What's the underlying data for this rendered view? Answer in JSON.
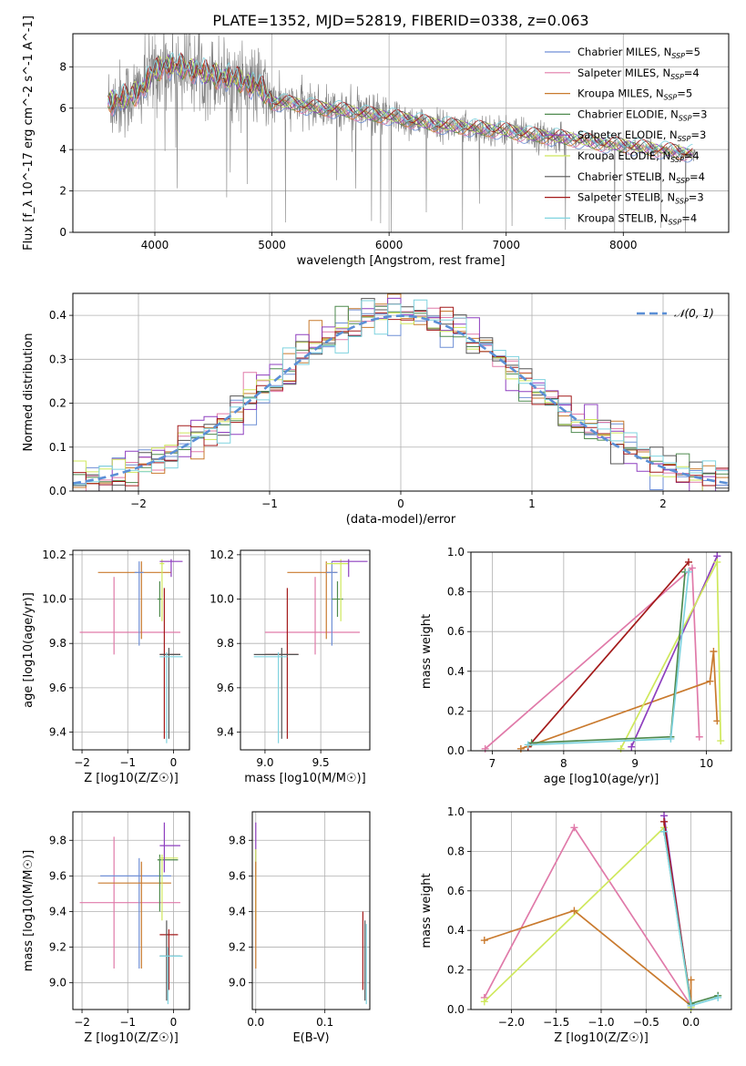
{
  "figure_title": "PLATE=1352, MJD=52819, FIBERID=0338, z=0.063",
  "colors": {
    "MILES": "#6f8fd6",
    "Salpeter MILES": "#e07aa9",
    "Kroupa MILES": "#c97a2e",
    "Chabrier ELODIE": "#4f8a4f",
    "Salpeter ELODIE": "#8e3fbf",
    "Kroupa ELODIE": "#cfe85c",
    "Chabrier STELIB": "#555555",
    "Salpeter STELIB": "#a31a1a",
    "Kroupa STELIB": "#7fd3df",
    "spectrum": "#808080",
    "grid": "#b0b0b0"
  },
  "chart_data": [
    {
      "type": "line",
      "id": "spectrum",
      "xlabel": "wavelength [Angstrom, rest frame]",
      "ylabel": "Flux [f_λ 10^-17 erg cm^-2 s^-1 A^-1]",
      "xlim": [
        3300,
        8900
      ],
      "ylim": [
        0,
        9.6
      ],
      "xticks": [
        4000,
        5000,
        6000,
        7000,
        8000
      ],
      "yticks": [
        0,
        2,
        4,
        6,
        8
      ],
      "legend_placement": "top-right",
      "legend": [
        {
          "label": "Chabrier MILES, N_SSP=5",
          "color": "#6f8fd6"
        },
        {
          "label": "Salpeter MILES, N_SSP=4",
          "color": "#e07aa9"
        },
        {
          "label": "Kroupa MILES, N_SSP=5",
          "color": "#c97a2e"
        },
        {
          "label": "Chabrier ELODIE, N_SSP=3",
          "color": "#4f8a4f"
        },
        {
          "label": "Salpeter ELODIE, N_SSP=3",
          "color": "#8e3fbf"
        },
        {
          "label": "Kroupa ELODIE, N_SSP=4",
          "color": "#cfe85c"
        },
        {
          "label": "Chabrier STELIB, N_SSP=4",
          "color": "#555555"
        },
        {
          "label": "Salpeter STELIB, N_SSP=3",
          "color": "#a31a1a"
        },
        {
          "label": "Kroupa STELIB, N_SSP=4",
          "color": "#7fd3df"
        }
      ],
      "continuum": [
        [
          3600,
          6.3
        ],
        [
          3700,
          6.4
        ],
        [
          3800,
          6.6
        ],
        [
          3900,
          7.0
        ],
        [
          4000,
          7.8
        ],
        [
          4100,
          8.1
        ],
        [
          4300,
          7.9
        ],
        [
          4500,
          7.6
        ],
        [
          4700,
          7.4
        ],
        [
          4900,
          7.0
        ],
        [
          5000,
          6.3
        ],
        [
          5200,
          6.2
        ],
        [
          5400,
          6.0
        ],
        [
          5600,
          5.9
        ],
        [
          5800,
          5.7
        ],
        [
          6000,
          5.6
        ],
        [
          6200,
          5.4
        ],
        [
          6400,
          5.2
        ],
        [
          6600,
          5.1
        ],
        [
          6800,
          5.0
        ],
        [
          7000,
          4.9
        ],
        [
          7200,
          4.7
        ],
        [
          7400,
          4.6
        ],
        [
          7600,
          4.5
        ],
        [
          7800,
          4.3
        ],
        [
          8000,
          4.2
        ],
        [
          8300,
          4.0
        ],
        [
          8600,
          3.8
        ]
      ]
    },
    {
      "type": "step",
      "id": "residual-histogram",
      "xlabel": "(data-model)/error",
      "ylabel": "Normed distribution",
      "xlim": [
        -2.5,
        2.5
      ],
      "ylim": [
        0,
        0.45
      ],
      "xticks": [
        -2,
        -1,
        0,
        1,
        2
      ],
      "yticks": [
        0.0,
        0.1,
        0.2,
        0.3,
        0.4
      ],
      "legend_placement": "top-right",
      "gauss_label": "𝒩(0, 1)",
      "gauss_color": "#5b8fd6"
    },
    {
      "type": "errorbar",
      "id": "age-vs-Z",
      "xlabel": "Z [log10(Z/Z☉)]",
      "ylabel": "age [log10(age/yr)]",
      "xlim": [
        -2.2,
        0.35
      ],
      "ylim": [
        9.32,
        10.22
      ],
      "xticks": [
        -2,
        -1,
        0
      ],
      "yticks": [
        9.4,
        9.6,
        9.8,
        10.0,
        10.2
      ],
      "points": [
        {
          "c": "#e07aa9",
          "x": -1.3,
          "y": 9.85,
          "xl": -2.05,
          "xh": 0.15,
          "yl": 9.75,
          "yh": 10.1
        },
        {
          "c": "#c97a2e",
          "x": -0.7,
          "y": 10.12,
          "xl": -1.65,
          "xh": -0.05,
          "yl": 9.82,
          "yh": 10.17
        },
        {
          "c": "#6f8fd6",
          "x": -0.75,
          "y": 10.12,
          "xl": -0.85,
          "xh": -0.65,
          "yl": 9.79,
          "yh": 10.17
        },
        {
          "c": "#4f8a4f",
          "x": -0.3,
          "y": 10.0,
          "xl": -0.35,
          "xh": -0.25,
          "yl": 9.92,
          "yh": 10.08
        },
        {
          "c": "#cfe85c",
          "x": -0.25,
          "y": 10.16,
          "xl": -0.3,
          "xh": -0.2,
          "yl": 9.9,
          "yh": 10.18
        },
        {
          "c": "#8e3fbf",
          "x": -0.05,
          "y": 10.17,
          "xl": -0.3,
          "xh": 0.2,
          "yl": 10.1,
          "yh": 10.18
        },
        {
          "c": "#a31a1a",
          "x": -0.2,
          "y": 9.75,
          "xl": -0.3,
          "xh": 0.15,
          "yl": 9.37,
          "yh": 10.05
        },
        {
          "c": "#555555",
          "x": -0.1,
          "y": 9.75,
          "xl": -0.3,
          "xh": 0.15,
          "yl": 9.37,
          "yh": 9.78
        },
        {
          "c": "#7fd3df",
          "x": -0.15,
          "y": 9.74,
          "xl": -0.3,
          "xh": 0.2,
          "yl": 9.35,
          "yh": 9.76
        }
      ]
    },
    {
      "type": "errorbar",
      "id": "age-vs-mass",
      "xlabel": "mass [log10(M/M☉)]",
      "ylabel": "",
      "xlim": [
        8.78,
        9.94
      ],
      "ylim": [
        9.32,
        10.22
      ],
      "xticks": [
        9.0,
        9.5
      ],
      "yticks": [
        9.4,
        9.6,
        9.8,
        10.0,
        10.2
      ],
      "points": [
        {
          "c": "#e07aa9",
          "x": 9.45,
          "y": 9.85,
          "xl": 9.0,
          "xh": 9.85,
          "yl": 9.75,
          "yh": 10.1
        },
        {
          "c": "#c97a2e",
          "x": 9.55,
          "y": 10.12,
          "xl": 9.2,
          "xh": 9.65,
          "yl": 9.82,
          "yh": 10.17
        },
        {
          "c": "#6f8fd6",
          "x": 9.6,
          "y": 10.12,
          "xl": 9.55,
          "xh": 9.65,
          "yl": 9.79,
          "yh": 10.17
        },
        {
          "c": "#4f8a4f",
          "x": 9.65,
          "y": 10.0,
          "xl": 9.6,
          "xh": 9.7,
          "yl": 9.92,
          "yh": 10.08
        },
        {
          "c": "#cfe85c",
          "x": 9.68,
          "y": 10.16,
          "xl": 9.55,
          "xh": 9.75,
          "yl": 9.9,
          "yh": 10.18
        },
        {
          "c": "#8e3fbf",
          "x": 9.75,
          "y": 10.17,
          "xl": 9.6,
          "xh": 9.92,
          "yl": 10.1,
          "yh": 10.18
        },
        {
          "c": "#a31a1a",
          "x": 9.2,
          "y": 9.75,
          "xl": 9.0,
          "xh": 9.3,
          "yl": 9.37,
          "yh": 10.05
        },
        {
          "c": "#555555",
          "x": 9.15,
          "y": 9.75,
          "xl": 8.9,
          "xh": 9.3,
          "yl": 9.37,
          "yh": 9.78
        },
        {
          "c": "#7fd3df",
          "x": 9.12,
          "y": 9.74,
          "xl": 8.9,
          "xh": 9.2,
          "yl": 9.35,
          "yh": 9.76
        }
      ]
    },
    {
      "type": "line",
      "id": "mass-weight-vs-age",
      "xlabel": "age [log10(age/yr)]",
      "ylabel": "mass weight",
      "xlim": [
        6.7,
        10.35
      ],
      "ylim": [
        0,
        1
      ],
      "xticks": [
        7,
        8,
        9,
        10
      ],
      "yticks": [
        0.0,
        0.2,
        0.4,
        0.6,
        0.8,
        1.0
      ],
      "series": [
        {
          "c": "#e07aa9",
          "pts": [
            [
              6.9,
              0.01
            ],
            [
              9.8,
              0.92
            ],
            [
              9.9,
              0.07
            ]
          ]
        },
        {
          "c": "#a31a1a",
          "pts": [
            [
              7.5,
              0.02
            ],
            [
              9.75,
              0.95
            ]
          ]
        },
        {
          "c": "#c97a2e",
          "pts": [
            [
              7.4,
              0.01
            ],
            [
              10.05,
              0.35
            ],
            [
              10.1,
              0.5
            ],
            [
              10.15,
              0.15
            ]
          ]
        },
        {
          "c": "#8e3fbf",
          "pts": [
            [
              8.95,
              0.02
            ],
            [
              10.15,
              0.98
            ]
          ]
        },
        {
          "c": "#cfe85c",
          "pts": [
            [
              8.8,
              0.01
            ],
            [
              10.15,
              0.95
            ],
            [
              10.2,
              0.05
            ]
          ]
        },
        {
          "c": "#4f8a4f",
          "pts": [
            [
              7.55,
              0.04
            ],
            [
              9.5,
              0.07
            ],
            [
              9.7,
              0.9
            ]
          ]
        },
        {
          "c": "#7fd3df",
          "pts": [
            [
              7.5,
              0.03
            ],
            [
              9.5,
              0.06
            ],
            [
              9.75,
              0.9
            ]
          ]
        }
      ]
    },
    {
      "type": "errorbar",
      "id": "mass-vs-Z",
      "xlabel": "Z [log10(Z/Z☉)]",
      "ylabel": "mass [log10(M/M☉)]",
      "xlim": [
        -2.2,
        0.35
      ],
      "ylim": [
        8.85,
        9.96
      ],
      "xticks": [
        -2,
        -1,
        0
      ],
      "yticks": [
        9.0,
        9.2,
        9.4,
        9.6,
        9.8
      ],
      "points": [
        {
          "c": "#e07aa9",
          "x": -1.3,
          "y": 9.45,
          "xl": -2.05,
          "xh": 0.15,
          "yl": 9.08,
          "yh": 9.82
        },
        {
          "c": "#6f8fd6",
          "x": -0.75,
          "y": 9.6,
          "xl": -1.6,
          "xh": -0.05,
          "yl": 9.08,
          "yh": 9.7
        },
        {
          "c": "#c97a2e",
          "x": -0.7,
          "y": 9.56,
          "xl": -1.65,
          "xh": -0.05,
          "yl": 9.08,
          "yh": 9.68
        },
        {
          "c": "#4f8a4f",
          "x": -0.3,
          "y": 9.69,
          "xl": -0.35,
          "xh": 0.1,
          "yl": 9.4,
          "yh": 9.72
        },
        {
          "c": "#cfe85c",
          "x": -0.25,
          "y": 9.7,
          "xl": -0.3,
          "xh": 0.1,
          "yl": 9.35,
          "yh": 9.72
        },
        {
          "c": "#8e3fbf",
          "x": -0.2,
          "y": 9.77,
          "xl": -0.3,
          "xh": 0.15,
          "yl": 9.62,
          "yh": 9.9
        },
        {
          "c": "#a31a1a",
          "x": -0.1,
          "y": 9.27,
          "xl": -0.3,
          "xh": 0.1,
          "yl": 8.96,
          "yh": 9.3
        },
        {
          "c": "#555555",
          "x": -0.15,
          "y": 9.15,
          "xl": -0.3,
          "xh": 0.15,
          "yl": 8.9,
          "yh": 9.35
        },
        {
          "c": "#7fd3df",
          "x": -0.12,
          "y": 9.15,
          "xl": -0.3,
          "xh": 0.2,
          "yl": 8.88,
          "yh": 9.2
        }
      ]
    },
    {
      "type": "errorbar",
      "id": "mass-vs-ebv",
      "xlabel": "E(B-V)",
      "ylabel": "",
      "xlim": [
        -0.005,
        0.165
      ],
      "ylim": [
        8.85,
        9.96
      ],
      "xticks": [
        0.0,
        0.1
      ],
      "yticks": [
        9.0,
        9.2,
        9.4,
        9.6,
        9.8
      ],
      "points": [
        {
          "c": "#8e3fbf",
          "x": 0.0,
          "y": 9.75,
          "xl": 0.0,
          "xh": 0.0,
          "yl": 9.6,
          "yh": 9.9
        },
        {
          "c": "#cfe85c",
          "x": 0.0,
          "y": 9.7,
          "xl": 0.0,
          "xh": 0.0,
          "yl": 9.35,
          "yh": 9.75
        },
        {
          "c": "#c97a2e",
          "x": 0.0,
          "y": 9.3,
          "xl": 0.0,
          "xh": 0.0,
          "yl": 9.08,
          "yh": 9.68
        },
        {
          "c": "#a31a1a",
          "x": 0.155,
          "y": 9.2,
          "xl": 0.155,
          "xh": 0.155,
          "yl": 8.96,
          "yh": 9.4
        },
        {
          "c": "#555555",
          "x": 0.158,
          "y": 9.1,
          "xl": 0.158,
          "xh": 0.158,
          "yl": 8.9,
          "yh": 9.35
        },
        {
          "c": "#7fd3df",
          "x": 0.16,
          "y": 9.1,
          "xl": 0.16,
          "xh": 0.16,
          "yl": 8.88,
          "yh": 9.33
        }
      ]
    },
    {
      "type": "line",
      "id": "mass-weight-vs-Z",
      "xlabel": "Z [log10(Z/Z☉)]",
      "ylabel": "mass weight",
      "xlim": [
        -2.45,
        0.45
      ],
      "ylim": [
        0,
        1
      ],
      "xticks": [
        -2.0,
        -1.5,
        -1.0,
        -0.5,
        0.0
      ],
      "yticks": [
        0.0,
        0.2,
        0.4,
        0.6,
        0.8,
        1.0
      ],
      "xticklabels": [
        "−2.0",
        "−1.5",
        "−1.0",
        "−0.5",
        "0.0"
      ],
      "series": [
        {
          "c": "#e07aa9",
          "pts": [
            [
              -2.3,
              0.06
            ],
            [
              -1.3,
              0.92
            ],
            [
              0.0,
              0.02
            ]
          ]
        },
        {
          "c": "#cfe85c",
          "pts": [
            [
              -2.3,
              0.04
            ],
            [
              -0.3,
              0.92
            ],
            [
              0.0,
              0.01
            ]
          ]
        },
        {
          "c": "#c97a2e",
          "pts": [
            [
              -2.3,
              0.35
            ],
            [
              -1.3,
              0.5
            ],
            [
              0.0,
              0.02
            ],
            [
              0.0,
              0.15
            ]
          ]
        },
        {
          "c": "#8e3fbf",
          "pts": [
            [
              -0.3,
              0.98
            ],
            [
              0.0,
              0.02
            ]
          ]
        },
        {
          "c": "#a31a1a",
          "pts": [
            [
              -0.3,
              0.95
            ],
            [
              0.0,
              0.03
            ]
          ]
        },
        {
          "c": "#4f8a4f",
          "pts": [
            [
              -0.3,
              0.9
            ],
            [
              0.0,
              0.03
            ],
            [
              0.3,
              0.07
            ]
          ]
        },
        {
          "c": "#7fd3df",
          "pts": [
            [
              -0.3,
              0.9
            ],
            [
              0.0,
              0.02
            ],
            [
              0.3,
              0.06
            ]
          ]
        }
      ]
    }
  ]
}
